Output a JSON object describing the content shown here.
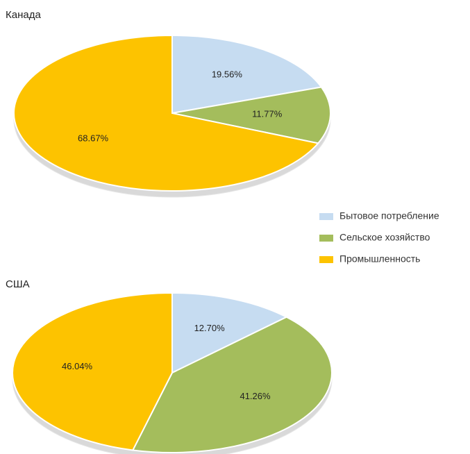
{
  "chart_data": [
    {
      "type": "pie",
      "title": "Канада",
      "values": [
        19.56,
        11.77,
        68.67
      ],
      "value_labels": [
        "19.56%",
        "11.77%",
        "68.67%"
      ]
    },
    {
      "type": "pie",
      "title": "США",
      "values": [
        12.7,
        41.26,
        46.04
      ],
      "value_labels": [
        "12.70%",
        "41.26%",
        "46.04%"
      ]
    }
  ],
  "legend": {
    "labels": [
      "Бытовое потребление",
      "Сельское хозяйство",
      "Промышленность"
    ],
    "colors": [
      "#c6dcf1",
      "#a4bd5c",
      "#fdc300"
    ]
  }
}
